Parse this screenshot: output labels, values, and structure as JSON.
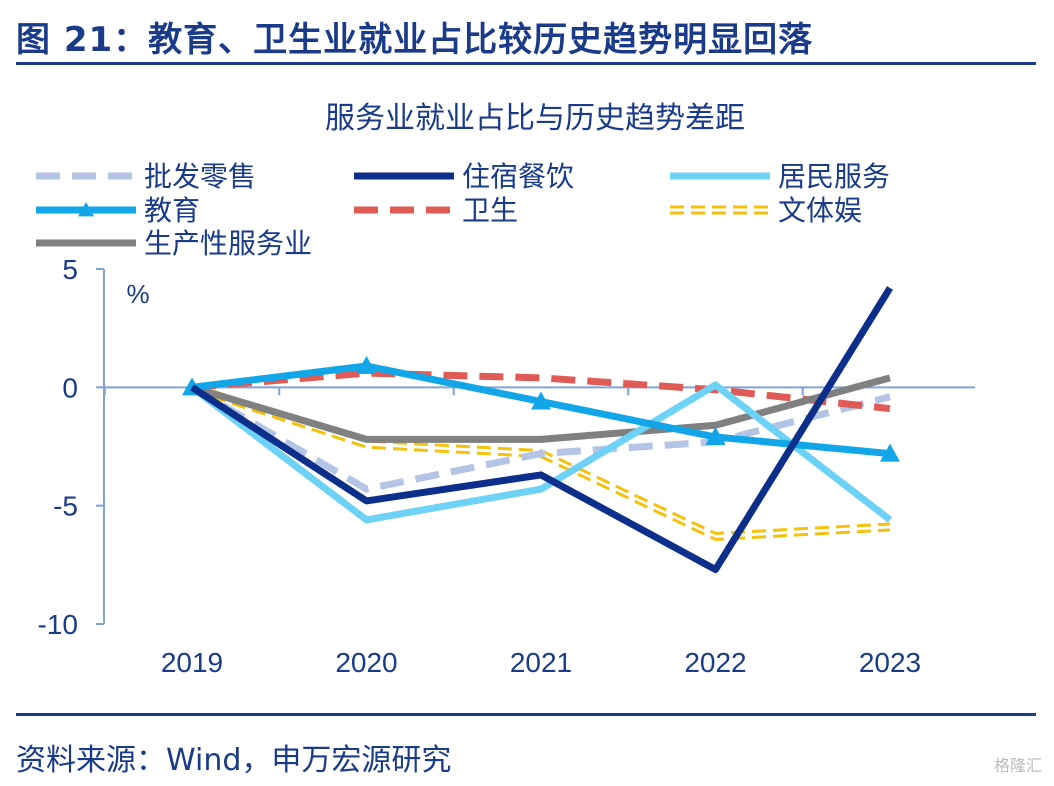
{
  "figure_title": "图 21：教育、卫生业就业占比较历史趋势明显回落",
  "source": "资料来源：Wind，申万宏源研究",
  "watermark": "格隆汇",
  "chart_data": {
    "type": "line",
    "title": "服务业就业占比与历史趋势差距",
    "ylabel": "%",
    "ylim": [
      -10,
      5
    ],
    "yticks": [
      5,
      0,
      -5,
      -10
    ],
    "categories": [
      "2019",
      "2020",
      "2021",
      "2022",
      "2023"
    ],
    "legend_position": "top",
    "grid": false,
    "series": [
      {
        "name": "批发零售",
        "values": [
          0,
          -4.3,
          -2.8,
          -2.3,
          -0.4
        ],
        "color": "#b4c4e4",
        "style": "dashed"
      },
      {
        "name": "住宿餐饮",
        "values": [
          0,
          -4.8,
          -3.7,
          -7.7,
          4.2
        ],
        "color": "#0d2f8c",
        "style": "solid"
      },
      {
        "name": "居民服务",
        "values": [
          0,
          -5.6,
          -4.3,
          0.1,
          -5.6
        ],
        "color": "#6dd2f5",
        "style": "solid"
      },
      {
        "name": "教育",
        "values": [
          0,
          0.9,
          -0.6,
          -2.1,
          -2.8
        ],
        "color": "#12a6e8",
        "style": "solid-triangle"
      },
      {
        "name": "卫生",
        "values": [
          0,
          0.6,
          0.4,
          -0.1,
          -0.9
        ],
        "color": "#e05b55",
        "style": "dashed"
      },
      {
        "name": "文体娱",
        "values": [
          0,
          -2.4,
          -2.8,
          -6.3,
          -5.9
        ],
        "color": "#f2c20d",
        "style": "double-dashed"
      },
      {
        "name": "生产性服务业",
        "values": [
          0,
          -2.2,
          -2.2,
          -1.6,
          0.4
        ],
        "color": "#808080",
        "style": "solid"
      }
    ]
  }
}
